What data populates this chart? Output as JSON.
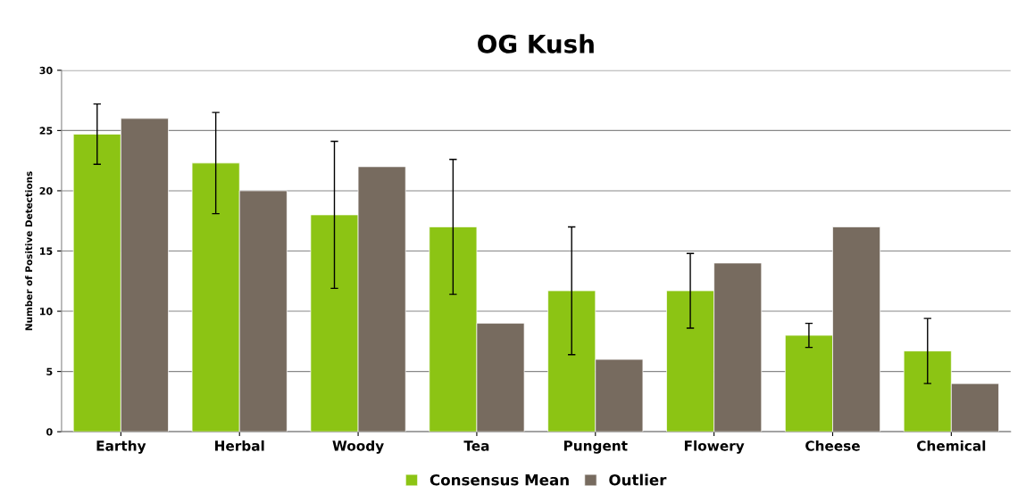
{
  "chart_data": {
    "type": "bar",
    "title": "OG Kush",
    "ylabel": "Number of Positive Detections",
    "categories": [
      "Earthy",
      "Herbal",
      "Woody",
      "Tea",
      "Pungent",
      "Flowery",
      "Cheese",
      "Chemical"
    ],
    "series": [
      {
        "name": "Consensus Mean",
        "color": "#8cc414",
        "values": [
          24.7,
          22.3,
          18.0,
          17.0,
          11.7,
          11.7,
          8.0,
          6.7
        ],
        "errors": [
          2.5,
          4.2,
          6.1,
          5.6,
          5.3,
          3.1,
          1.0,
          2.7
        ]
      },
      {
        "name": "Outlier",
        "color": "#776b5f",
        "values": [
          26,
          20,
          22,
          9,
          6,
          14,
          17,
          4
        ]
      }
    ],
    "ylim": [
      0,
      30
    ],
    "yticks": [
      0,
      5,
      10,
      15,
      20,
      25,
      30
    ],
    "grid": "y",
    "legend": "bottom"
  }
}
